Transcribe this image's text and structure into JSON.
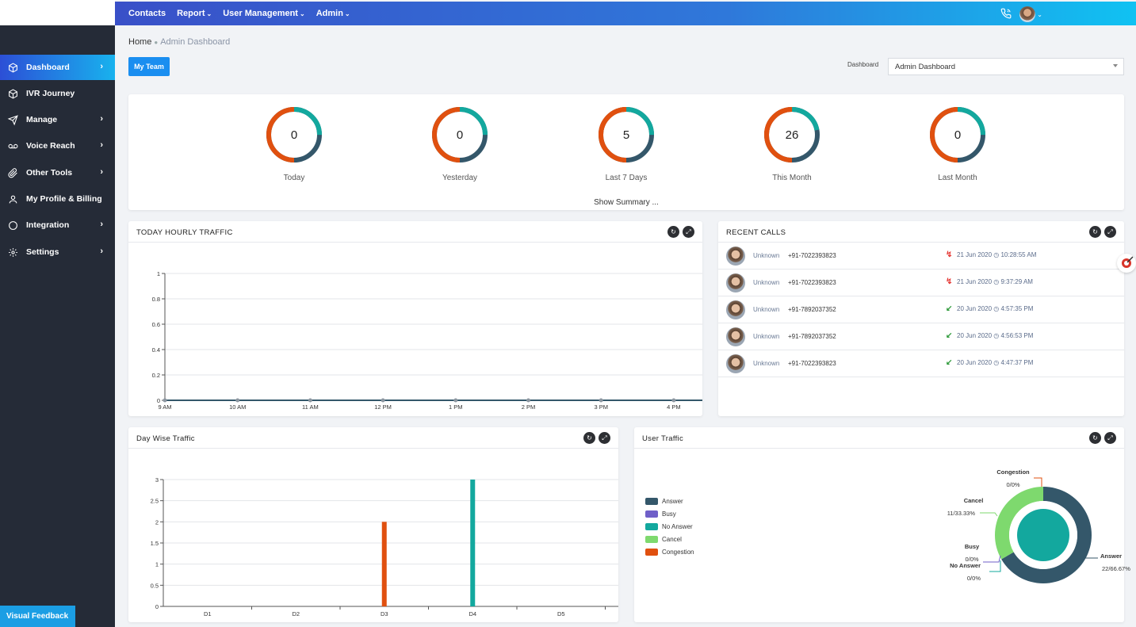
{
  "topnav": {
    "items": [
      {
        "label": "Contacts",
        "caret": false
      },
      {
        "label": "Report",
        "caret": true
      },
      {
        "label": "User Management",
        "caret": true
      },
      {
        "label": "Admin",
        "caret": true
      }
    ]
  },
  "sidebar": {
    "items": [
      {
        "label": "Dashboard",
        "icon": "cube-icon",
        "chevron": true,
        "active": true
      },
      {
        "label": "IVR Journey",
        "icon": "cube-icon",
        "chevron": false,
        "active": false
      },
      {
        "label": "Manage",
        "icon": "send-icon",
        "chevron": true,
        "active": false
      },
      {
        "label": "Voice Reach",
        "icon": "voicemail-icon",
        "chevron": true,
        "active": false
      },
      {
        "label": "Other Tools",
        "icon": "paperclip-icon",
        "chevron": true,
        "active": false
      },
      {
        "label": "My Profile & Billing",
        "icon": "user-icon",
        "chevron": false,
        "active": false
      },
      {
        "label": "Integration",
        "icon": "circle-icon",
        "chevron": true,
        "active": false
      },
      {
        "label": "Settings",
        "icon": "gear-icon",
        "chevron": true,
        "active": false
      }
    ],
    "feedback_label": "Visual Feedback"
  },
  "breadcrumb": {
    "home": "Home",
    "current": "Admin Dashboard"
  },
  "my_team_label": "My Team",
  "dashboard_select": {
    "label": "Dashboard",
    "value": "Admin Dashboard"
  },
  "stats": {
    "items": [
      {
        "label": "Today",
        "value": "0",
        "split": 0.5
      },
      {
        "label": "Yesterday",
        "value": "0",
        "split": 0.5
      },
      {
        "label": "Last 7 Days",
        "value": "5",
        "split": 0.5
      },
      {
        "label": "This Month",
        "value": "26",
        "split": 0.35
      },
      {
        "label": "Last Month",
        "value": "0",
        "split": 0.5
      }
    ],
    "summary_label": "Show Summary ..."
  },
  "colors": {
    "teal": "#13a89e",
    "orange": "#e0500f",
    "navy": "#34576a",
    "purple": "#6f5fc8",
    "lightgreen": "#7ed96e",
    "blue": "#1a8ef0"
  },
  "hourly": {
    "title": "TODAY HOURLY TRAFFIC",
    "chart_data": {
      "type": "line",
      "categories": [
        "9 AM",
        "10 AM",
        "11 AM",
        "12 PM",
        "1 PM",
        "2 PM",
        "3 PM",
        "4 PM"
      ],
      "y_ticks": [
        "0",
        "0.2",
        "0.4",
        "0.6",
        "0.8",
        "1"
      ],
      "ylim": [
        0,
        1
      ],
      "series": [
        {
          "values": [
            0,
            0,
            0,
            0,
            0,
            0,
            0,
            0
          ]
        }
      ]
    }
  },
  "recent_calls": {
    "title": "RECENT CALLS",
    "rows": [
      {
        "name": "Unknown",
        "phone": "+91-7022393823",
        "date": "21 Jun 2020",
        "time": "10:28:55 AM",
        "status": "missed"
      },
      {
        "name": "Unknown",
        "phone": "+91-7022393823",
        "date": "21 Jun 2020",
        "time": "9:37:29 AM",
        "status": "missed"
      },
      {
        "name": "Unknown",
        "phone": "+91-7892037352",
        "date": "20 Jun 2020",
        "time": "4:57:35 PM",
        "status": "incoming"
      },
      {
        "name": "Unknown",
        "phone": "+91-7892037352",
        "date": "20 Jun 2020",
        "time": "4:56:53 PM",
        "status": "incoming"
      },
      {
        "name": "Unknown",
        "phone": "+91-7022393823",
        "date": "20 Jun 2020",
        "time": "4:47:37 PM",
        "status": "incoming"
      }
    ]
  },
  "daywise": {
    "title": "Day Wise Traffic",
    "chart_data": {
      "type": "bar",
      "categories": [
        "D1",
        "D2",
        "D3",
        "D4",
        "D5"
      ],
      "y_ticks": [
        "0",
        "0.5",
        "1",
        "1.5",
        "2",
        "2.5",
        "3"
      ],
      "ylim": [
        0,
        3
      ],
      "series": [
        {
          "name": "Congestion",
          "color": "#e0500f",
          "values": [
            0,
            0,
            2,
            0,
            0
          ]
        },
        {
          "name": "No Answer",
          "color": "#13a89e",
          "values": [
            0,
            0,
            0,
            3,
            0
          ]
        }
      ]
    }
  },
  "user_traffic": {
    "title": "User Traffic",
    "legend": [
      {
        "label": "Answer",
        "color": "#34576a"
      },
      {
        "label": "Busy",
        "color": "#6f5fc8"
      },
      {
        "label": "No Answer",
        "color": "#13a89e"
      },
      {
        "label": "Cancel",
        "color": "#7ed96e"
      },
      {
        "label": "Congestion",
        "color": "#e0500f"
      }
    ],
    "chart_data": {
      "type": "pie",
      "slices": [
        {
          "name": "Answer",
          "value": 22,
          "label": "22/66.67%",
          "color": "#34576a"
        },
        {
          "name": "Cancel",
          "value": 11,
          "label": "11/33.33%",
          "color": "#7ed96e"
        },
        {
          "name": "Busy",
          "value": 0,
          "label": "0/0%",
          "color": "#6f5fc8"
        },
        {
          "name": "No Answer",
          "value": 0,
          "label": "0/0%",
          "color": "#13a89e"
        },
        {
          "name": "Congestion",
          "value": 0,
          "label": "0/0%",
          "color": "#e0500f"
        }
      ]
    }
  }
}
